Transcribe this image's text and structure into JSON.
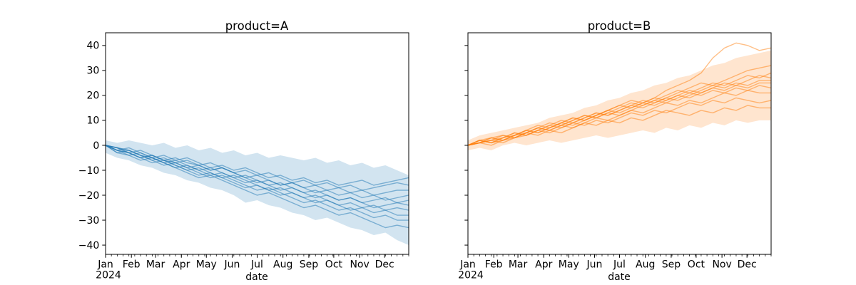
{
  "chart_data": {
    "type": "line",
    "xlabel": "date",
    "x_unit": "days since Jan 1 2024",
    "x": [
      0,
      14,
      28,
      42,
      56,
      70,
      84,
      98,
      112,
      126,
      140,
      154,
      168,
      182,
      196,
      210,
      224,
      238,
      252,
      266,
      280,
      294,
      308,
      322,
      336,
      350,
      364
    ],
    "xlim_days": [
      0,
      364
    ],
    "ylim": [
      -43.7,
      45.1
    ],
    "y_ticks": [
      40,
      30,
      20,
      10,
      0,
      -10,
      -20,
      -30,
      -40
    ],
    "x_ticks": {
      "labels": [
        "Jan",
        "Feb",
        "Mar",
        "Apr",
        "May",
        "Jun",
        "Jul",
        "Aug",
        "Sep",
        "Oct",
        "Nov",
        "Dec"
      ],
      "days": [
        0,
        31,
        60,
        91,
        121,
        152,
        182,
        213,
        244,
        274,
        305,
        335
      ],
      "year_label": "2024",
      "minor_interval_days": 7
    },
    "grid": false,
    "legend": "none",
    "axis_color": "#000000",
    "line_alpha": 0.5,
    "band_alpha": 0.2,
    "facets": [
      {
        "title": "product=A",
        "xlabel": "date",
        "color": "#1f77b4",
        "y_tick_labels_visible": true,
        "band": {
          "upper": [
            2,
            1,
            2,
            1,
            0,
            1,
            -1,
            0,
            -2,
            -1,
            -3,
            -2,
            -4,
            -3,
            -5,
            -4,
            -5,
            -6,
            -5,
            -7,
            -6,
            -8,
            -7,
            -9,
            -8,
            -10,
            -12
          ],
          "lower": [
            -3,
            -5,
            -6,
            -8,
            -9,
            -11,
            -12,
            -14,
            -15,
            -17,
            -18,
            -20,
            -23,
            -22,
            -24,
            -25,
            -27,
            -28,
            -30,
            -29,
            -31,
            -33,
            -34,
            -36,
            -35,
            -38,
            -40
          ]
        },
        "series": [
          {
            "values": [
              0,
              -2,
              -1,
              -3,
              -5,
              -4,
              -6,
              -5,
              -7,
              -9,
              -8,
              -10,
              -9,
              -11,
              -13,
              -12,
              -14,
              -13,
              -15,
              -14,
              -16,
              -15,
              -14,
              -16,
              -15,
              -14,
              -13
            ]
          },
          {
            "values": [
              0,
              -1,
              -3,
              -2,
              -4,
              -6,
              -5,
              -7,
              -8,
              -7,
              -9,
              -11,
              -10,
              -12,
              -11,
              -13,
              -15,
              -14,
              -16,
              -15,
              -17,
              -16,
              -18,
              -17,
              -16,
              -15,
              -16
            ]
          },
          {
            "values": [
              0,
              -2,
              -3,
              -5,
              -4,
              -6,
              -7,
              -6,
              -8,
              -10,
              -9,
              -11,
              -13,
              -12,
              -14,
              -16,
              -15,
              -17,
              -16,
              -18,
              -17,
              -19,
              -18,
              -20,
              -19,
              -18,
              -18
            ]
          },
          {
            "values": [
              0,
              -1,
              -2,
              -4,
              -6,
              -5,
              -7,
              -9,
              -8,
              -10,
              -9,
              -11,
              -13,
              -15,
              -14,
              -16,
              -15,
              -17,
              -19,
              -18,
              -20,
              -19,
              -21,
              -20,
              -22,
              -21,
              -20
            ]
          },
          {
            "values": [
              0,
              -3,
              -2,
              -4,
              -5,
              -7,
              -6,
              -8,
              -10,
              -9,
              -11,
              -13,
              -12,
              -14,
              -16,
              -15,
              -17,
              -19,
              -18,
              -20,
              -22,
              -21,
              -23,
              -22,
              -21,
              -23,
              -22
            ]
          },
          {
            "values": [
              0,
              -2,
              -4,
              -3,
              -5,
              -7,
              -9,
              -8,
              -10,
              -12,
              -11,
              -13,
              -15,
              -14,
              -16,
              -18,
              -17,
              -19,
              -21,
              -20,
              -22,
              -21,
              -23,
              -25,
              -24,
              -23,
              -24
            ]
          },
          {
            "values": [
              0,
              -1,
              -3,
              -5,
              -4,
              -6,
              -8,
              -10,
              -9,
              -11,
              -13,
              -12,
              -14,
              -16,
              -18,
              -17,
              -19,
              -21,
              -20,
              -22,
              -24,
              -23,
              -25,
              -24,
              -26,
              -25,
              -26
            ]
          },
          {
            "values": [
              0,
              -2,
              -3,
              -5,
              -7,
              -6,
              -8,
              -10,
              -12,
              -11,
              -13,
              -15,
              -17,
              -16,
              -18,
              -20,
              -19,
              -21,
              -23,
              -22,
              -24,
              -26,
              -25,
              -27,
              -26,
              -28,
              -28
            ]
          },
          {
            "values": [
              0,
              -1,
              -2,
              -4,
              -6,
              -8,
              -7,
              -9,
              -11,
              -13,
              -12,
              -14,
              -16,
              -18,
              -17,
              -19,
              -21,
              -23,
              -22,
              -24,
              -26,
              -25,
              -27,
              -29,
              -28,
              -30,
              -30
            ]
          },
          {
            "values": [
              0,
              -3,
              -4,
              -6,
              -5,
              -7,
              -9,
              -11,
              -13,
              -12,
              -14,
              -16,
              -18,
              -20,
              -19,
              -21,
              -23,
              -25,
              -24,
              -26,
              -28,
              -27,
              -29,
              -31,
              -33,
              -32,
              -33
            ]
          }
        ]
      },
      {
        "title": "product=B",
        "xlabel": "date",
        "color": "#ff7f0e",
        "y_tick_labels_visible": false,
        "band": {
          "upper": [
            2,
            4,
            5,
            6,
            7,
            8,
            9,
            11,
            12,
            13,
            15,
            16,
            18,
            19,
            21,
            22,
            24,
            25,
            27,
            28,
            30,
            32,
            33,
            35,
            36,
            37,
            38
          ],
          "lower": [
            -2,
            -1,
            -2,
            0,
            1,
            0,
            1,
            2,
            1,
            2,
            3,
            4,
            3,
            4,
            5,
            6,
            5,
            7,
            6,
            8,
            7,
            9,
            8,
            10,
            9,
            10,
            10
          ]
        },
        "series": [
          {
            "values": [
              0,
              1,
              3,
              2,
              4,
              6,
              5,
              7,
              9,
              11,
              10,
              12,
              14,
              16,
              18,
              17,
              19,
              22,
              24,
              26,
              29,
              35,
              39,
              41,
              40,
              38,
              39
            ]
          },
          {
            "values": [
              0,
              2,
              1,
              3,
              5,
              4,
              6,
              8,
              7,
              9,
              11,
              13,
              12,
              14,
              16,
              18,
              17,
              19,
              21,
              23,
              25,
              24,
              26,
              28,
              30,
              31,
              32
            ]
          },
          {
            "values": [
              0,
              1,
              2,
              4,
              3,
              5,
              7,
              6,
              8,
              10,
              12,
              11,
              13,
              15,
              17,
              16,
              18,
              20,
              22,
              21,
              23,
              25,
              24,
              26,
              28,
              27,
              29
            ]
          },
          {
            "values": [
              0,
              2,
              3,
              2,
              4,
              6,
              5,
              7,
              9,
              8,
              10,
              12,
              14,
              13,
              15,
              17,
              19,
              18,
              20,
              22,
              21,
              23,
              25,
              24,
              26,
              28,
              27
            ]
          },
          {
            "values": [
              0,
              1,
              2,
              3,
              5,
              4,
              6,
              8,
              10,
              9,
              11,
              13,
              12,
              14,
              16,
              15,
              17,
              19,
              18,
              20,
              22,
              24,
              23,
              25,
              24,
              26,
              26
            ]
          },
          {
            "values": [
              0,
              2,
              1,
              3,
              4,
              6,
              8,
              7,
              9,
              11,
              10,
              12,
              14,
              16,
              15,
              17,
              16,
              18,
              20,
              19,
              21,
              23,
              22,
              24,
              23,
              25,
              25
            ]
          },
          {
            "values": [
              0,
              1,
              3,
              4,
              3,
              5,
              7,
              9,
              8,
              10,
              12,
              11,
              13,
              12,
              14,
              16,
              18,
              17,
              19,
              21,
              20,
              22,
              21,
              23,
              22,
              24,
              23
            ]
          },
          {
            "values": [
              0,
              2,
              1,
              2,
              4,
              5,
              7,
              6,
              8,
              7,
              9,
              11,
              10,
              12,
              14,
              13,
              15,
              17,
              16,
              18,
              17,
              19,
              21,
              20,
              22,
              21,
              21
            ]
          },
          {
            "values": [
              0,
              1,
              2,
              1,
              3,
              4,
              6,
              5,
              7,
              9,
              8,
              10,
              9,
              11,
              13,
              12,
              14,
              13,
              15,
              17,
              16,
              18,
              17,
              19,
              18,
              17,
              18
            ]
          },
          {
            "values": [
              0,
              1,
              0,
              2,
              3,
              5,
              4,
              6,
              5,
              7,
              9,
              8,
              10,
              9,
              11,
              10,
              12,
              14,
              13,
              12,
              14,
              13,
              15,
              14,
              16,
              15,
              15
            ]
          }
        ]
      }
    ]
  }
}
